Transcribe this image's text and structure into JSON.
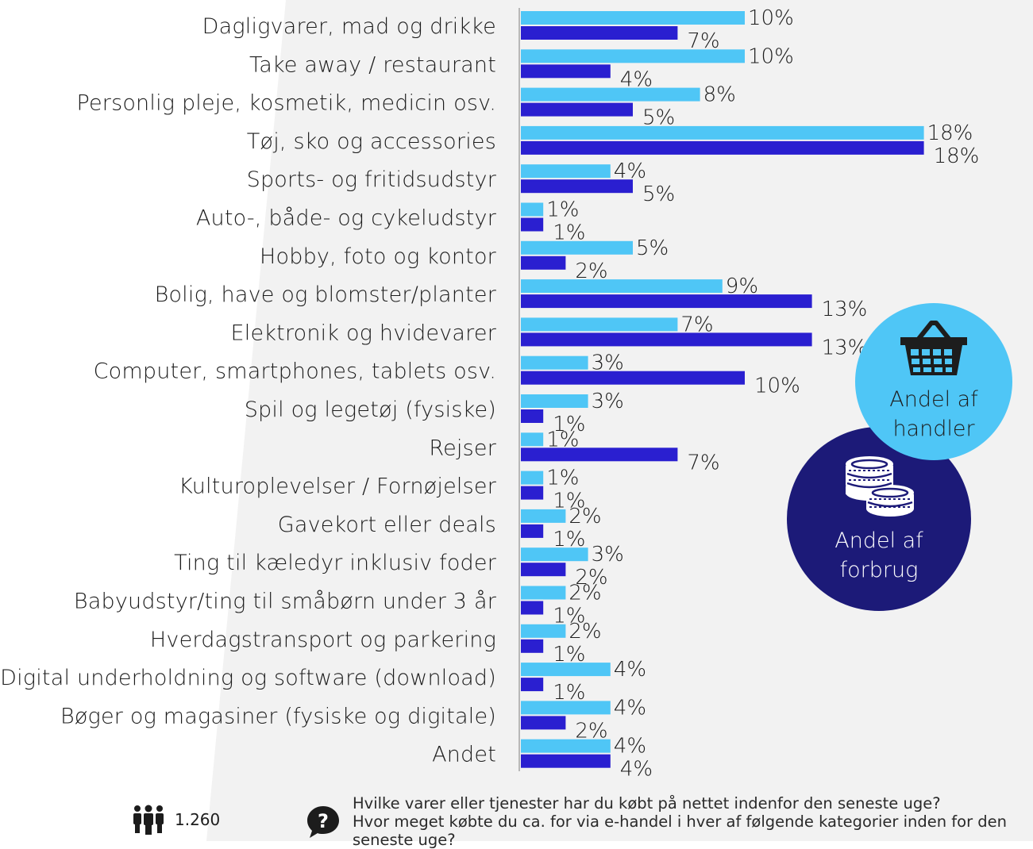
{
  "chart_data": {
    "type": "bar",
    "orientation": "horizontal",
    "categories": [
      "Dagligvarer, mad og drikke",
      "Take away / restaurant",
      "Personlig pleje, kosmetik, medicin osv.",
      "Tøj, sko og accessories",
      "Sports- og fritidsudstyr",
      "Auto-, både- og cykeludstyr",
      "Hobby, foto og kontor",
      "Bolig, have og blomster/planter",
      "Elektronik og hvidevarer",
      "Computer, smartphones, tablets osv.",
      "Spil og legetøj (fysiske)",
      "Rejser",
      "Kulturoplevelser / Fornøjelser",
      "Gavekort eller deals",
      "Ting til kæledyr inklusiv foder",
      "Babyudstyr/ting til småbørn under 3 år",
      "Hverdagstransport og parkering",
      "Digital underholdning og software (download)",
      "Bøger og magasiner (fysiske og digitale)",
      "Andet"
    ],
    "series": [
      {
        "name": "Andel af handler",
        "color": "#4fc6f6",
        "values": [
          10,
          10,
          8,
          18,
          4,
          1,
          5,
          9,
          7,
          3,
          3,
          1,
          1,
          2,
          3,
          2,
          2,
          4,
          4,
          4
        ],
        "labels": [
          "10%",
          "10%",
          "8%",
          "18%",
          "4%",
          "1%",
          "5%",
          "9%",
          "7%",
          "3%",
          "3%",
          "1%",
          "1%",
          "2%",
          "3%",
          "2%",
          "2%",
          "4%",
          "4%",
          "4%"
        ]
      },
      {
        "name": "Andel af forbrug",
        "color": "#2a1fd0",
        "values": [
          7,
          4,
          5,
          18,
          5,
          1,
          2,
          13,
          13,
          10,
          1,
          7,
          1,
          1,
          2,
          1,
          1,
          1,
          2,
          4
        ],
        "labels": [
          "7%",
          "4%",
          "5%",
          "18%",
          "5%",
          "1%",
          "2%",
          "13%",
          "13%",
          "10%",
          "1%",
          "7%",
          "1%",
          "1%",
          "2%",
          "1%",
          "1%",
          "1%",
          "2%",
          "4%"
        ]
      }
    ],
    "xlim": [
      0,
      18
    ]
  },
  "legend": {
    "handler": {
      "line1": "Andel af",
      "line2": "handler",
      "icon": "basket-icon",
      "color": "#4fc6f6"
    },
    "forbrug": {
      "line1": "Andel af",
      "line2": "forbrug",
      "icon": "coins-icon",
      "color": "#1c1a78"
    }
  },
  "footer": {
    "respondents_icon": "people-icon",
    "respondents": "1.260",
    "question_icon": "question-icon",
    "question_lines": [
      "Hvilke varer eller tjenester har du købt på nettet indenfor den seneste uge?",
      "Hvor meget købte du ca. for via e-handel i hver af følgende kategorier inden for den",
      "seneste uge?"
    ]
  }
}
